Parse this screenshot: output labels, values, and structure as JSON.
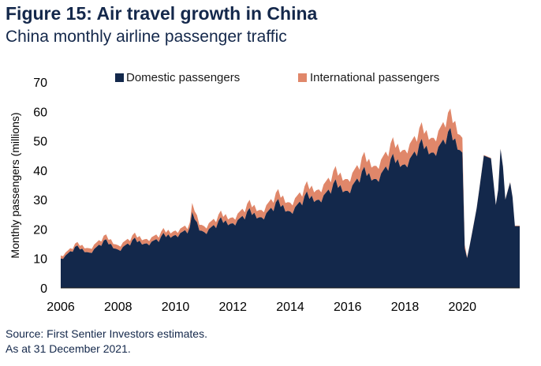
{
  "title": "Figure 15: Air travel growth in China",
  "subtitle": "China monthly airline passenger traffic",
  "source_lines": [
    "Source: First Sentier Investors estimates.",
    "As at 31 December 2021."
  ],
  "colors": {
    "domestic": "#13284b",
    "international": "#e0876a",
    "text": "#14284b"
  },
  "chart_data": {
    "type": "area",
    "stacked": true,
    "title": "China monthly airline passenger traffic",
    "xlabel": "",
    "ylabel": "Monthly passengers (millions)",
    "xlim": [
      2006,
      2022
    ],
    "ylim": [
      0,
      70
    ],
    "yticks": [
      0,
      10,
      20,
      30,
      40,
      50,
      60,
      70
    ],
    "xticks": [
      2006,
      2008,
      2010,
      2012,
      2014,
      2016,
      2018,
      2020
    ],
    "legend_position": "top",
    "x_anchor_years": [
      2006,
      2006.2,
      2006.5,
      2007,
      2007.5,
      2008,
      2008.5,
      2008.9,
      2009.5,
      2010,
      2010.5,
      2010.6,
      2010.8,
      2011,
      2011.5,
      2012,
      2012.5,
      2013,
      2013.5,
      2014,
      2014.5,
      2015,
      2015.5,
      2016,
      2016.5,
      2017,
      2017.5,
      2018,
      2018.5,
      2019,
      2019.5,
      2019.8,
      2020.0,
      2020.1,
      2020.25,
      2020.5,
      2020.75,
      2021.0,
      2021.2,
      2021.35,
      2021.5,
      2021.7,
      2021.83,
      2022
    ],
    "series": [
      {
        "name": "Domestic passengers",
        "values": [
          10,
          11,
          13,
          12,
          15,
          13,
          15,
          15,
          16,
          18,
          19,
          24,
          20,
          19,
          21,
          22,
          24,
          24,
          27,
          26,
          29,
          30,
          33,
          33,
          37,
          37,
          41,
          42,
          46,
          46,
          50,
          48,
          46,
          7,
          14,
          27,
          45,
          44,
          25,
          50,
          30,
          37,
          21,
          21
        ]
      },
      {
        "name": "International passengers",
        "values": [
          1.0,
          1.0,
          1.0,
          1.5,
          1.5,
          1.5,
          1.5,
          1.5,
          1.5,
          1.5,
          1.5,
          3.0,
          2.0,
          2.0,
          2.0,
          2.0,
          2.5,
          2.5,
          3.0,
          3.0,
          3.0,
          3.5,
          4.0,
          4.0,
          4.5,
          4.5,
          5.0,
          5.0,
          5.0,
          5.0,
          6.0,
          5.5,
          5.0,
          0.5,
          0.2,
          0.2,
          0.2,
          0.2,
          0.2,
          0.2,
          0.2,
          0.2,
          0.2,
          0.2
        ]
      }
    ]
  }
}
